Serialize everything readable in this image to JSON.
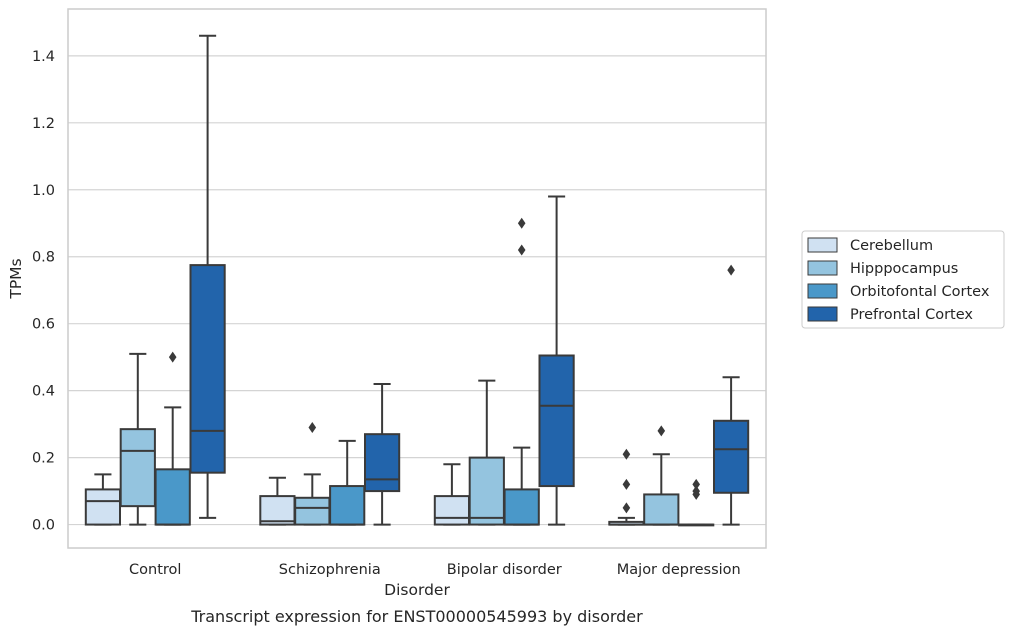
{
  "caption": "Transcript expression for ENST00000545993 by disorder",
  "chart_data": {
    "type": "box",
    "xlabel": "Disorder",
    "ylabel": "TPMs",
    "ylim": [
      -0.07,
      1.54
    ],
    "yticks": [
      "0.0",
      "0.2",
      "0.4",
      "0.6",
      "0.8",
      "1.0",
      "1.2",
      "1.4"
    ],
    "grid": "horizontal",
    "legend_position": "right",
    "categories": [
      "Control",
      "Schizophrenia",
      "Bipolar disorder",
      "Major depression"
    ],
    "series": [
      {
        "name": "Cerebellum",
        "color": "#d0e1f2",
        "boxes": [
          {
            "whislo": 0.0,
            "q1": 0.0,
            "med": 0.07,
            "q3": 0.105,
            "whishi": 0.15,
            "fliers": []
          },
          {
            "whislo": 0.0,
            "q1": 0.0,
            "med": 0.01,
            "q3": 0.085,
            "whishi": 0.14,
            "fliers": []
          },
          {
            "whislo": 0.0,
            "q1": 0.0,
            "med": 0.02,
            "q3": 0.085,
            "whishi": 0.18,
            "fliers": []
          },
          {
            "whislo": 0.0,
            "q1": 0.0,
            "med": 0.0,
            "q3": 0.008,
            "whishi": 0.02,
            "fliers": [
              0.05,
              0.12,
              0.21
            ]
          }
        ]
      },
      {
        "name": "Hipppocampus",
        "color": "#94c4df",
        "boxes": [
          {
            "whislo": 0.0,
            "q1": 0.055,
            "med": 0.22,
            "q3": 0.285,
            "whishi": 0.51,
            "fliers": []
          },
          {
            "whislo": 0.0,
            "q1": 0.0,
            "med": 0.05,
            "q3": 0.08,
            "whishi": 0.15,
            "fliers": [
              0.29
            ]
          },
          {
            "whislo": 0.0,
            "q1": 0.0,
            "med": 0.02,
            "q3": 0.2,
            "whishi": 0.43,
            "fliers": []
          },
          {
            "whislo": 0.0,
            "q1": 0.0,
            "med": 0.0,
            "q3": 0.09,
            "whishi": 0.21,
            "fliers": [
              0.28
            ]
          }
        ]
      },
      {
        "name": "Orbitofontal Cortex",
        "color": "#4a98c9",
        "boxes": [
          {
            "whislo": 0.0,
            "q1": 0.0,
            "med": 0.0,
            "q3": 0.165,
            "whishi": 0.35,
            "fliers": [
              0.5
            ]
          },
          {
            "whislo": 0.0,
            "q1": 0.0,
            "med": 0.0,
            "q3": 0.115,
            "whishi": 0.25,
            "fliers": []
          },
          {
            "whislo": 0.0,
            "q1": 0.0,
            "med": 0.0,
            "q3": 0.105,
            "whishi": 0.23,
            "fliers": [
              0.82,
              0.9
            ]
          },
          {
            "whislo": 0.0,
            "q1": 0.0,
            "med": 0.0,
            "q3": 0.0,
            "whishi": 0.0,
            "fliers": [
              0.09,
              0.1,
              0.12
            ]
          }
        ]
      },
      {
        "name": "Prefrontal Cortex",
        "color": "#2264ab",
        "boxes": [
          {
            "whislo": 0.02,
            "q1": 0.155,
            "med": 0.28,
            "q3": 0.775,
            "whishi": 1.46,
            "fliers": []
          },
          {
            "whislo": 0.0,
            "q1": 0.1,
            "med": 0.135,
            "q3": 0.27,
            "whishi": 0.42,
            "fliers": []
          },
          {
            "whislo": 0.0,
            "q1": 0.115,
            "med": 0.355,
            "q3": 0.505,
            "whishi": 0.98,
            "fliers": []
          },
          {
            "whislo": 0.0,
            "q1": 0.095,
            "med": 0.225,
            "q3": 0.31,
            "whishi": 0.44,
            "fliers": [
              0.76
            ]
          }
        ]
      }
    ]
  }
}
